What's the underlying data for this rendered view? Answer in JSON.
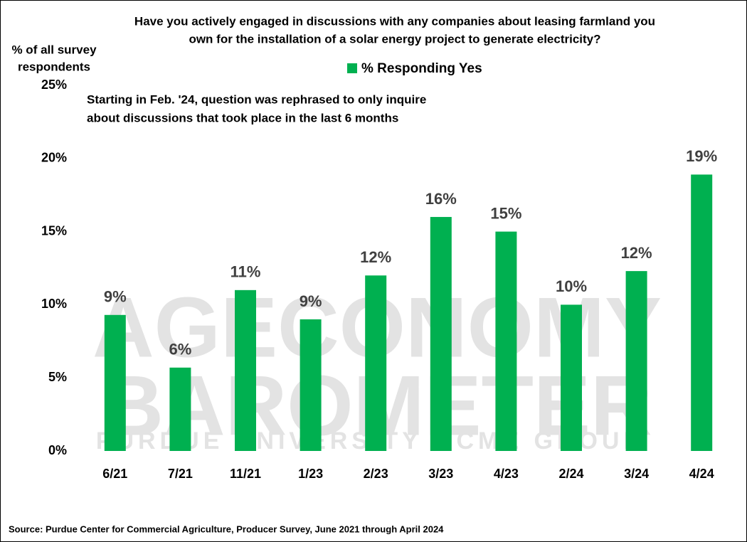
{
  "chart_data": {
    "type": "bar",
    "title": [
      "Have you actively engaged in discussions with any companies about leasing farmland you",
      "own for the installation of a solar energy project to generate electricity?"
    ],
    "y_label": [
      "% of all survey",
      "respondents"
    ],
    "annotation": [
      "Starting in Feb. '24, question was rephrased to only inquire",
      "about discussions that took place in the last 6 months"
    ],
    "watermark": [
      "AGECONOMY",
      "BAROMETER",
      "PURDUE UNIVERSITY - CME GROUP"
    ],
    "source": "Source: Purdue Center for Commercial Agriculture, Producer Survey, June 2021 through April 2024",
    "categories": [
      "6/21",
      "7/21",
      "11/21",
      "1/23",
      "2/23",
      "3/23",
      "4/23",
      "2/24",
      "3/24",
      "4/24"
    ],
    "series": [
      {
        "name": "% Responding Yes",
        "color": "#00b050",
        "values": [
          9.3,
          5.7,
          11,
          9,
          12,
          16,
          15,
          10,
          12.3,
          18.9
        ],
        "value_labels": [
          "9%",
          "6%",
          "11%",
          "9%",
          "12%",
          "16%",
          "15%",
          "10%",
          "12%",
          "19%"
        ]
      }
    ],
    "ylim": [
      0,
      25
    ],
    "yticks": [
      {
        "value": 0,
        "label": "0%"
      },
      {
        "value": 5,
        "label": "5%"
      },
      {
        "value": 10,
        "label": "10%"
      },
      {
        "value": 15,
        "label": "15%"
      },
      {
        "value": 20,
        "label": "20%"
      },
      {
        "value": 25,
        "label": "25%"
      }
    ],
    "legend": "top"
  }
}
